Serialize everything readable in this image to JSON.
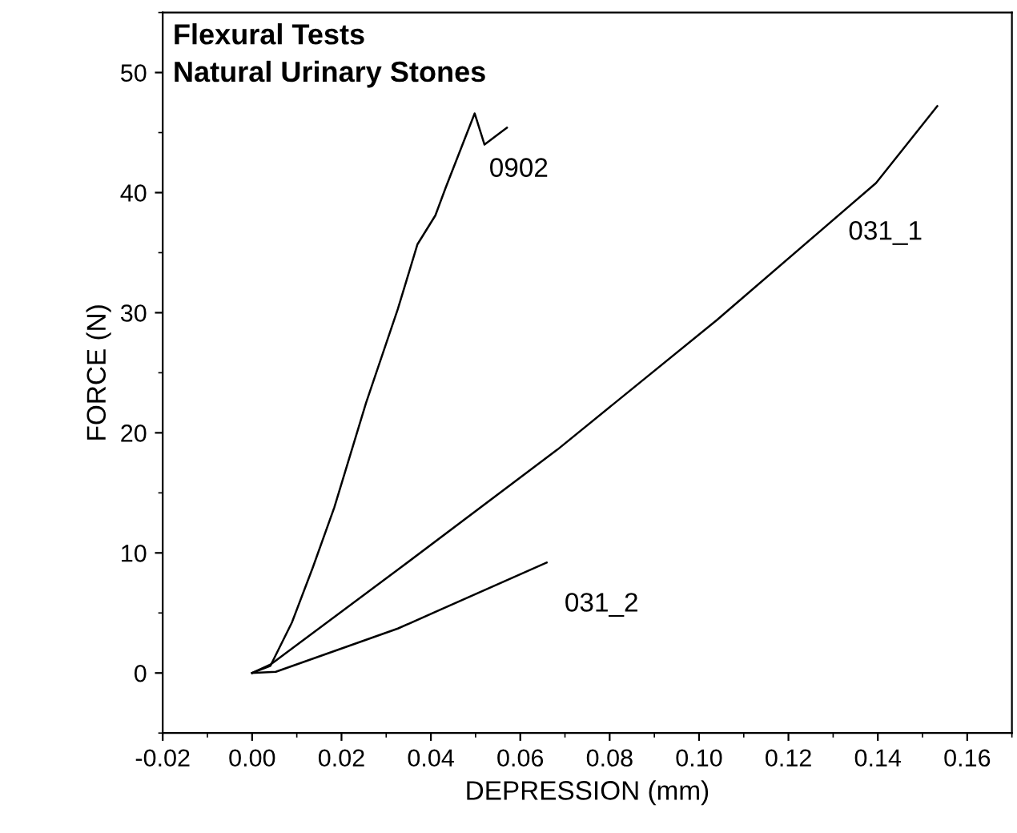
{
  "chart_data": {
    "type": "line",
    "title": "Flexural Tests\nNatural Urinary Stones",
    "xlabel": "DEPRESSION (mm)",
    "ylabel": "FORCE (N)",
    "xlim": [
      -0.02,
      0.17
    ],
    "ylim": [
      -5,
      55
    ],
    "xticks": [
      {
        "value": -0.02,
        "label": "-0.02"
      },
      {
        "value": 0,
        "label": "0.00"
      },
      {
        "value": 0.02,
        "label": "0.02"
      },
      {
        "value": 0.04,
        "label": "0.04"
      },
      {
        "value": 0.06,
        "label": "0.06"
      },
      {
        "value": 0.08,
        "label": "0.08"
      },
      {
        "value": 0.1,
        "label": "0.10"
      },
      {
        "value": 0.12,
        "label": "0.12"
      },
      {
        "value": 0.14,
        "label": "0.14"
      },
      {
        "value": 0.16,
        "label": "0.16"
      }
    ],
    "yticks": [
      0,
      10,
      20,
      30,
      40,
      50
    ],
    "grid": false,
    "legend": false,
    "marker": "none",
    "line_style": "solid",
    "series": [
      {
        "name": "0902",
        "color": "#000000",
        "x": [
          0,
          0.0041,
          0.0089,
          0.0136,
          0.0184,
          0.0255,
          0.0326,
          0.037,
          0.041,
          0.0433,
          0.0498,
          0.052,
          0.0552,
          0.057
        ],
        "values": [
          0,
          0.6,
          4.2,
          8.8,
          13.8,
          22.5,
          30.3,
          35.7,
          38.1,
          40.4,
          46.6,
          44.0,
          44.9,
          45.4
        ]
      },
      {
        "name": "031_1",
        "color": "#000000",
        "x": [
          0,
          0.0041,
          0.0326,
          0.0683,
          0.104,
          0.1396,
          0.1533
        ],
        "values": [
          0,
          0.7,
          8.6,
          18.6,
          29.4,
          40.8,
          47.2
        ]
      },
      {
        "name": "031_2",
        "color": "#000000",
        "x": [
          0,
          0.0053,
          0.0326,
          0.0659
        ],
        "values": [
          0,
          0.1,
          3.7,
          9.2
        ]
      }
    ]
  }
}
